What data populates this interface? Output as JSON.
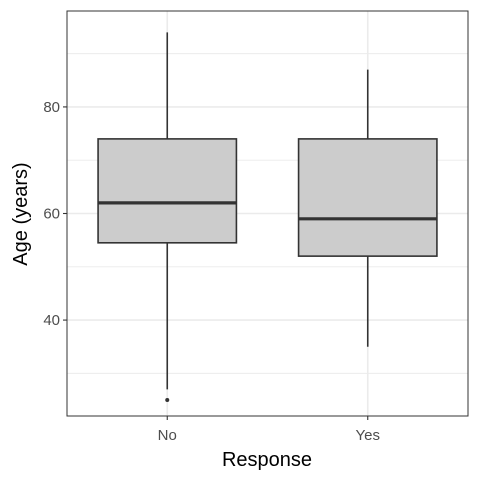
{
  "chart_data": {
    "type": "boxplot",
    "title": "",
    "xlabel": "Response",
    "ylabel": "Age (years)",
    "categories": [
      "No",
      "Yes"
    ],
    "boxes": [
      {
        "category": "No",
        "whisker_low": 27,
        "q1": 54.5,
        "median": 62,
        "q3": 74,
        "whisker_high": 94,
        "outliers": [
          25
        ]
      },
      {
        "category": "Yes",
        "whisker_low": 35,
        "q1": 52,
        "median": 59,
        "q3": 74,
        "whisker_high": 87,
        "outliers": []
      }
    ],
    "ylim": [
      22,
      98
    ],
    "yticks": [
      40,
      60,
      80
    ],
    "ytick_labels": [
      "40",
      "60",
      "80"
    ],
    "grid": true,
    "legend": "none",
    "box_fill": "#cccccc",
    "box_stroke": "#333333",
    "grid_color": "#ebebeb",
    "panel_border_color": "#333333"
  }
}
